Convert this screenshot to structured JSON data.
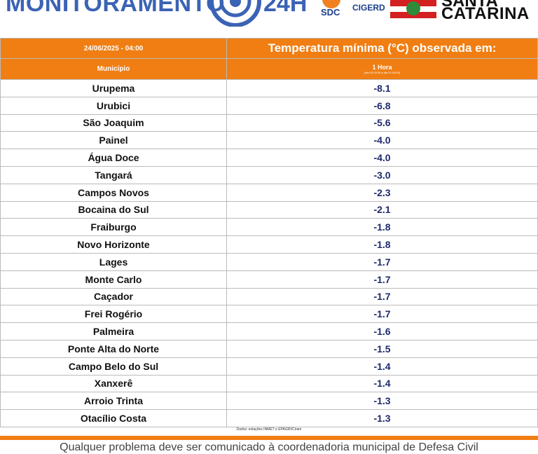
{
  "header": {
    "title": "MONITORAMENTO",
    "badge": "24H",
    "sdc": "SDC",
    "cigerd": "CIGERD",
    "state_line1": "SANTA",
    "state_line2": "CATARINA"
  },
  "table": {
    "datetime": "24/06/2025 - 04:00",
    "heading": "Temperatura mínima (°C) observada em:",
    "column_headers": [
      "Município",
      "1 Hora"
    ],
    "subheader": "(dia 24 03:00 a dia 24 04:00)",
    "rows": [
      [
        "Urupema",
        "-8.1"
      ],
      [
        "Urubici",
        "-6.8"
      ],
      [
        "São Joaquim",
        "-5.6"
      ],
      [
        "Painel",
        "-4.0"
      ],
      [
        "Água Doce",
        "-4.0"
      ],
      [
        "Tangará",
        "-3.0"
      ],
      [
        "Campos Novos",
        "-2.3"
      ],
      [
        "Bocaina do Sul",
        "-2.1"
      ],
      [
        "Fraiburgo",
        "-1.8"
      ],
      [
        "Novo Horizonte",
        "-1.8"
      ],
      [
        "Lages",
        "-1.7"
      ],
      [
        "Monte Carlo",
        "-1.7"
      ],
      [
        "Caçador",
        "-1.7"
      ],
      [
        "Frei Rogério",
        "-1.7"
      ],
      [
        "Palmeira",
        "-1.6"
      ],
      [
        "Ponte Alta do Norte",
        "-1.5"
      ],
      [
        "Campo Belo do Sul",
        "-1.4"
      ],
      [
        "Xanxerê",
        "-1.4"
      ],
      [
        "Arroio Trinta",
        "-1.3"
      ],
      [
        "Otacílio Costa",
        "-1.3"
      ]
    ]
  },
  "source": "Dados: estações INMET e EPAGRI/Ciram",
  "footer_note": "Qualquer problema deve ser comunicado à coordenadoria municipal de Defesa Civil"
}
